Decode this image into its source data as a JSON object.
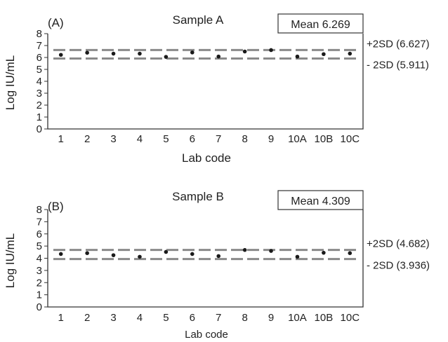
{
  "chart_data": [
    {
      "type": "scatter",
      "panel_label": "(A)",
      "title": "Sample A",
      "mean_label": "Mean 6.269",
      "xlabel": "Lab code",
      "ylabel": "Log IU/mL",
      "categories": [
        "1",
        "2",
        "3",
        "4",
        "5",
        "6",
        "7",
        "8",
        "9",
        "10A",
        "10B",
        "10C"
      ],
      "values": [
        6.22,
        6.4,
        6.32,
        6.32,
        6.05,
        6.42,
        6.08,
        6.5,
        6.62,
        6.08,
        6.28,
        6.32
      ],
      "ylim": [
        0,
        8
      ],
      "yticks": [
        "0",
        "1",
        "2",
        "3",
        "4",
        "5",
        "6",
        "7",
        "8"
      ],
      "reference_lines": [
        {
          "value": 6.627,
          "label": "+2SD (6.627)"
        },
        {
          "value": 5.911,
          "label": "- 2SD (5.911)"
        }
      ]
    },
    {
      "type": "scatter",
      "panel_label": "(B)",
      "title": "Sample B",
      "mean_label": "Mean 4.309",
      "xlabel": "Lab code",
      "ylabel": "Log IU/mL",
      "categories": [
        "1",
        "2",
        "3",
        "4",
        "5",
        "6",
        "7",
        "8",
        "9",
        "10A",
        "10B",
        "10C"
      ],
      "values": [
        4.35,
        4.42,
        4.25,
        4.12,
        4.52,
        4.35,
        4.18,
        4.68,
        4.6,
        4.12,
        4.45,
        4.42
      ],
      "ylim": [
        0,
        8
      ],
      "yticks": [
        "0",
        "1",
        "2",
        "3",
        "4",
        "5",
        "6",
        "7",
        "8"
      ],
      "reference_lines": [
        {
          "value": 4.682,
          "label": "+2SD (4.682)"
        },
        {
          "value": 3.936,
          "label": "- 2SD (3.936)"
        }
      ]
    }
  ]
}
